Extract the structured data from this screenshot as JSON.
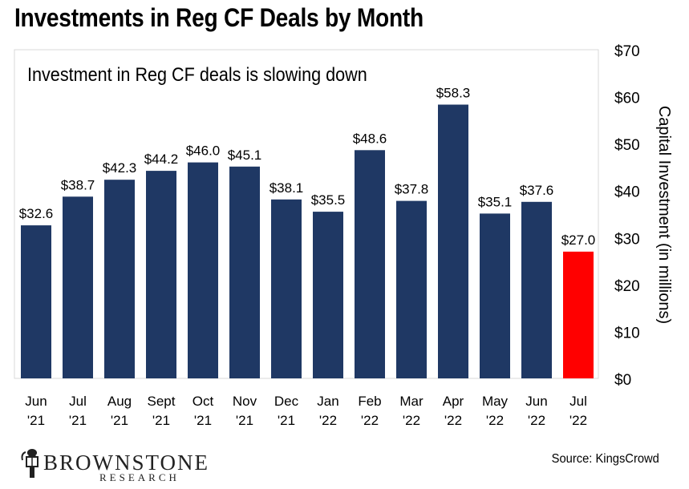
{
  "title": "Investments in Reg CF Deals by Month",
  "source": "Source: KingsCrowd",
  "logo": {
    "name": "BROWNSTONE",
    "sub": "RESEARCH"
  },
  "chart_data": {
    "type": "bar",
    "subtitle": "Investment in Reg CF deals is slowing down",
    "categories": [
      [
        "Jun",
        "'21"
      ],
      [
        "Jul",
        "'21"
      ],
      [
        "Aug",
        "'21"
      ],
      [
        "Sept",
        "'21"
      ],
      [
        "Oct",
        "'21"
      ],
      [
        "Nov",
        "'21"
      ],
      [
        "Dec",
        "'21"
      ],
      [
        "Jan",
        "'22"
      ],
      [
        "Feb",
        "'22"
      ],
      [
        "Mar",
        "'22"
      ],
      [
        "Apr",
        "'22"
      ],
      [
        "May",
        "'22"
      ],
      [
        "Jun",
        "'22"
      ],
      [
        "Jul",
        "'22"
      ]
    ],
    "values": [
      32.6,
      38.7,
      42.3,
      44.2,
      46.0,
      45.1,
      38.1,
      35.5,
      48.6,
      37.8,
      58.3,
      35.1,
      37.6,
      27.0
    ],
    "data_labels": [
      "$32.6",
      "$38.7",
      "$42.3",
      "$44.2",
      "$46.0",
      "$45.1",
      "$38.1",
      "$35.5",
      "$48.6",
      "$37.8",
      "$58.3",
      "$35.1",
      "$37.6",
      "$27.0"
    ],
    "ylabel": "Capital Investment (in millions)",
    "ylim": [
      0,
      70
    ],
    "yticks": [
      0,
      10,
      20,
      30,
      40,
      50,
      60,
      70
    ],
    "ytick_labels": [
      "$0",
      "$10",
      "$20",
      "$30",
      "$40",
      "$50",
      "$60",
      "$70"
    ],
    "y_axis_side": "right",
    "grid": false,
    "colors": {
      "bar": "#1f3864",
      "highlight": "#ff0000",
      "frame": "#d9d9d9"
    },
    "highlight_index": 13
  }
}
